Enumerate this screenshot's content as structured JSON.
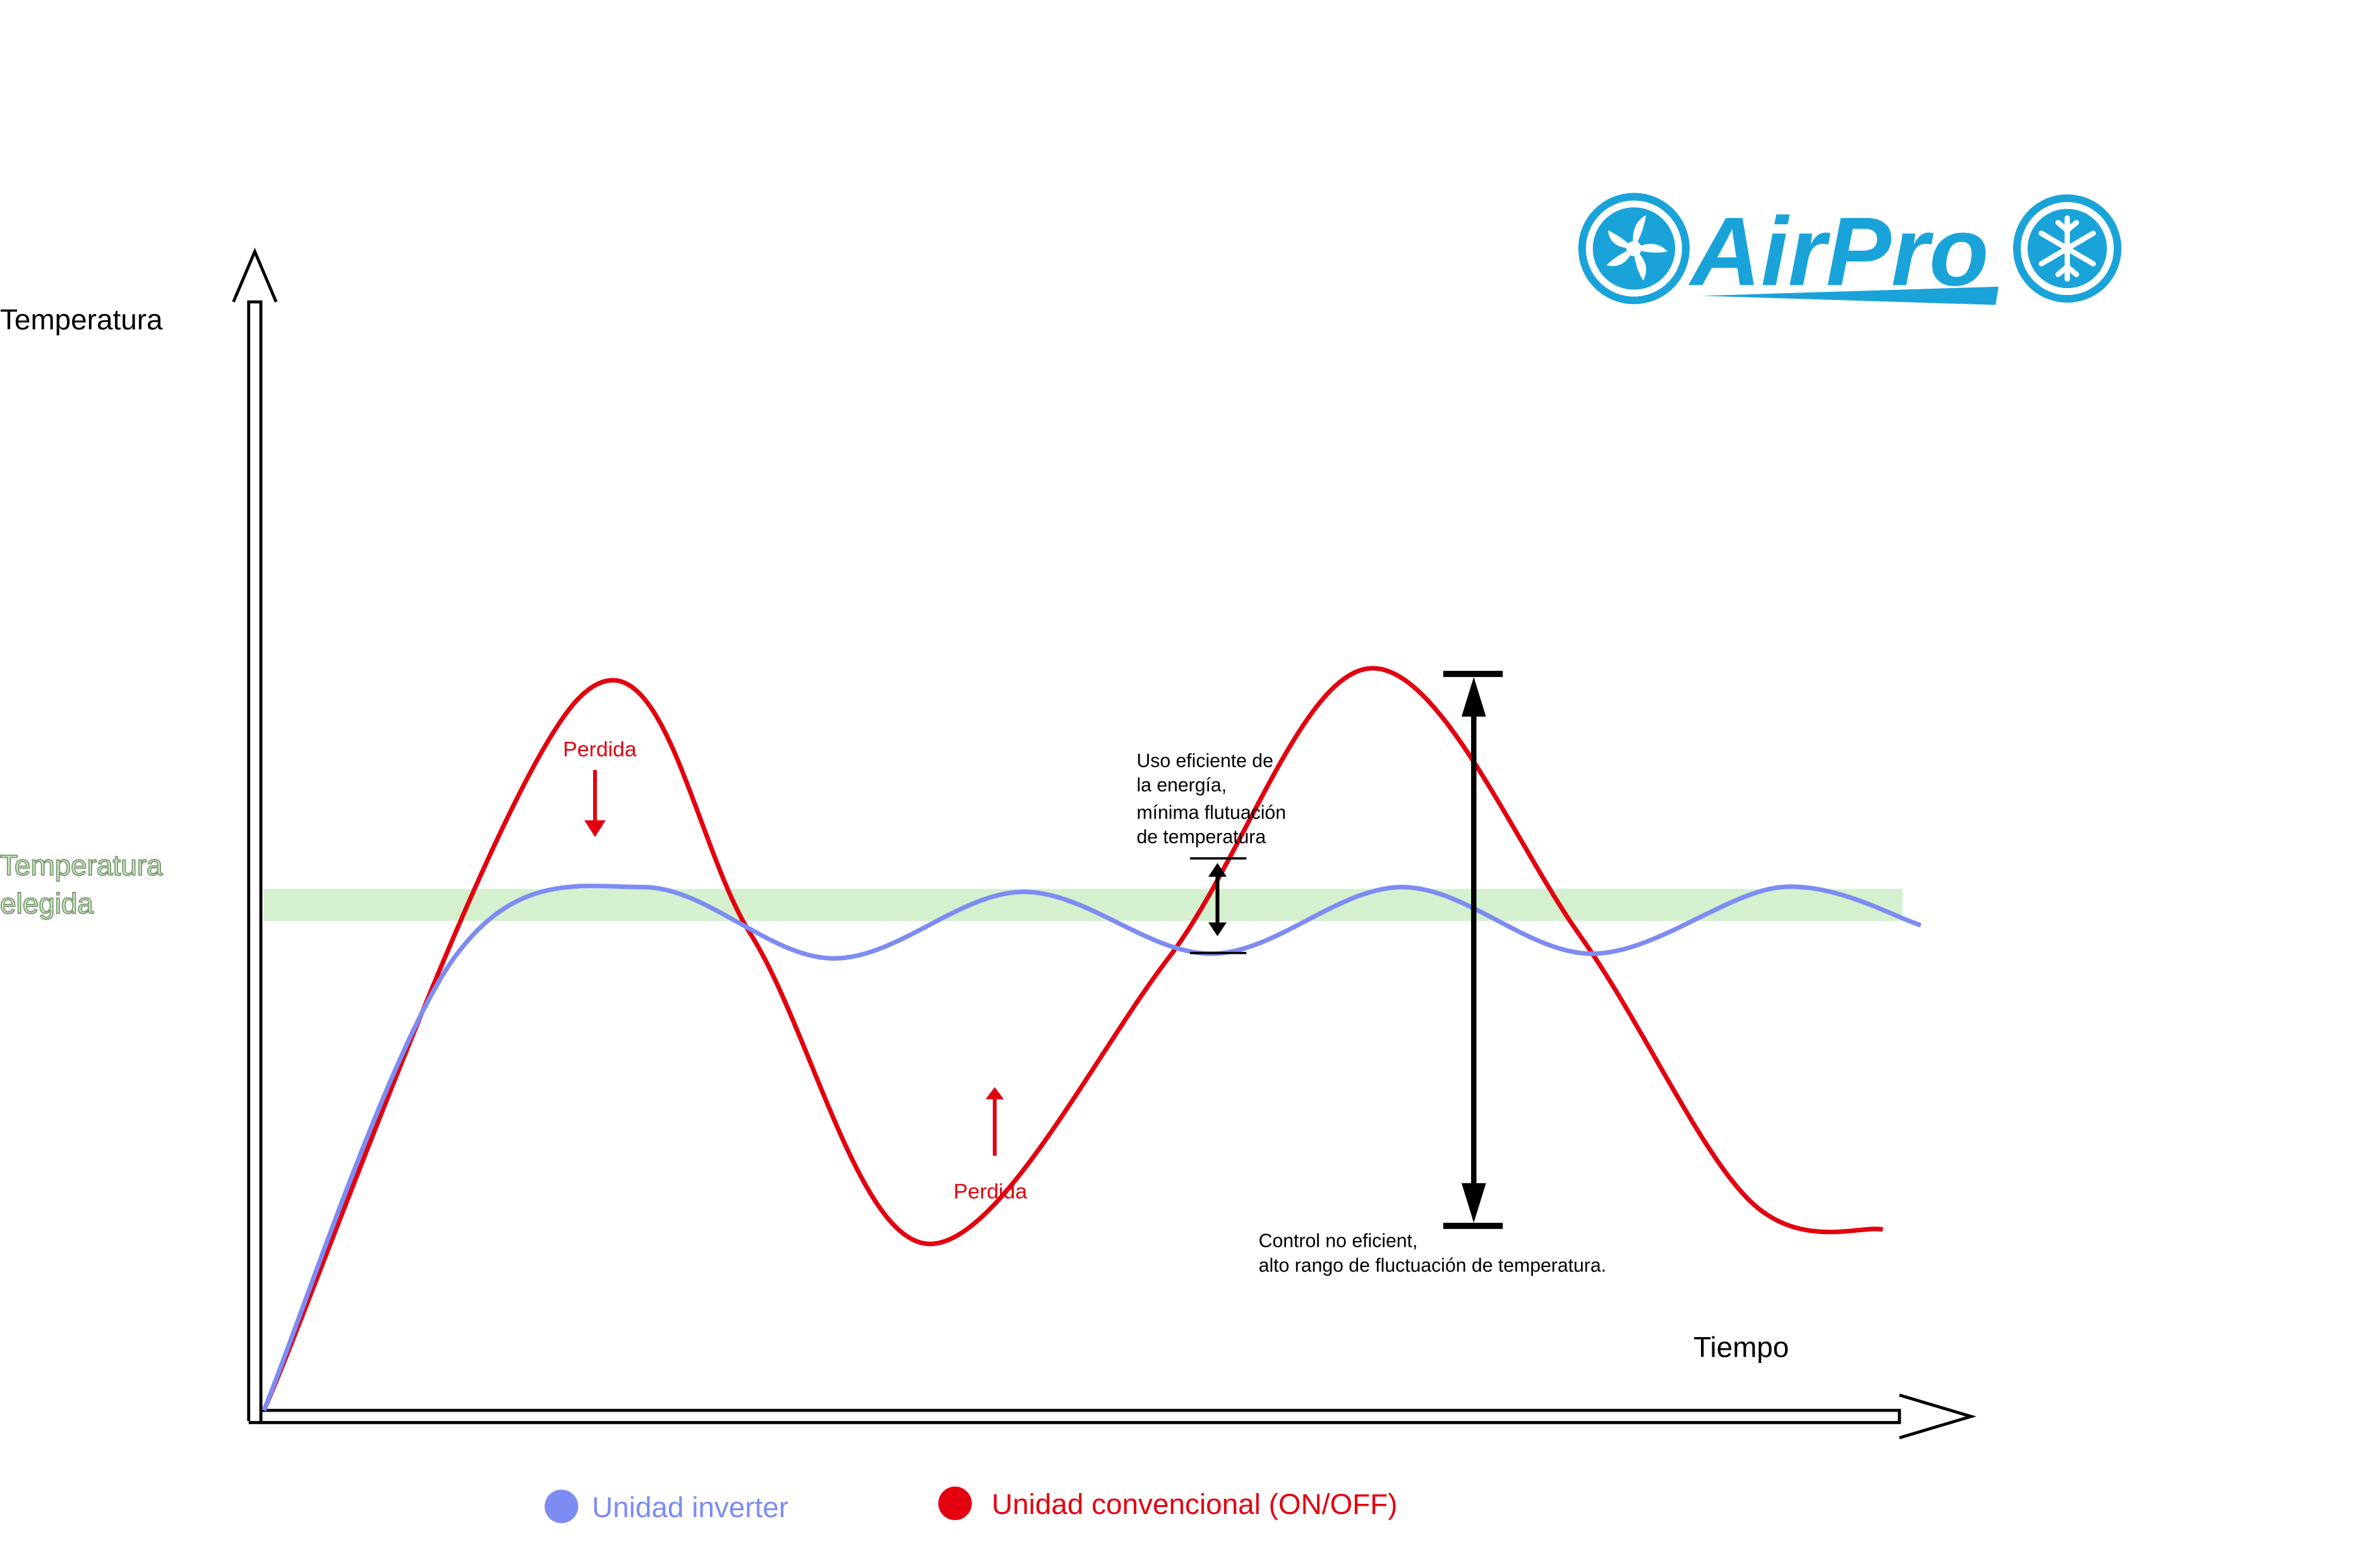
{
  "brand": {
    "name": "AirPro",
    "color": "#1aa3d9"
  },
  "labels": {
    "temperatura": "Temperatura",
    "elegida_line1": "Temperatura",
    "elegida_line2": "elegida",
    "tiempo": "Tiempo",
    "perdida_top": "Perdida",
    "perdida_bottom": "Perdida",
    "uso_line1": "Uso eficiente de",
    "uso_line2": "la energía,",
    "uso_line3": "mínima flutuación",
    "uso_line4": "de temperatura",
    "control_line1": "Control no eficient,",
    "control_line2": "alto rango de fluctuación de temperatura."
  },
  "legend": {
    "inverter": "Unidad inverter",
    "conventional": "Unidad convencional (ON/OFF)"
  },
  "colors": {
    "inverter": "#7d8cf2",
    "conventional": "#e3000f",
    "setpoint_band": "#d4f0cf",
    "setpoint_text": "#7d9b74",
    "axis": "#000000"
  },
  "chart_data": {
    "type": "line",
    "xlabel": "Tiempo",
    "ylabel": "Temperatura",
    "setpoint_label": "Temperatura elegida",
    "series": [
      {
        "name": "Unidad inverter",
        "points": [
          [
            0,
            0
          ],
          [
            3,
            0.95
          ],
          [
            6,
            1.1
          ],
          [
            9,
            0.95
          ],
          [
            12,
            1.09
          ],
          [
            15,
            0.96
          ],
          [
            18,
            1.1
          ],
          [
            21,
            0.96
          ],
          [
            24,
            1.1
          ],
          [
            26.2,
            1.02
          ]
        ]
      },
      {
        "name": "Unidad convencional (ON/OFF)",
        "points": [
          [
            0,
            0
          ],
          [
            5,
            1.5
          ],
          [
            7.7,
            1.0
          ],
          [
            10.5,
            0.35
          ],
          [
            14.3,
            0.95
          ],
          [
            17.5,
            1.56
          ],
          [
            20.8,
            1.0
          ],
          [
            23.5,
            0.44
          ],
          [
            25.6,
            0.38
          ]
        ]
      }
    ]
  }
}
